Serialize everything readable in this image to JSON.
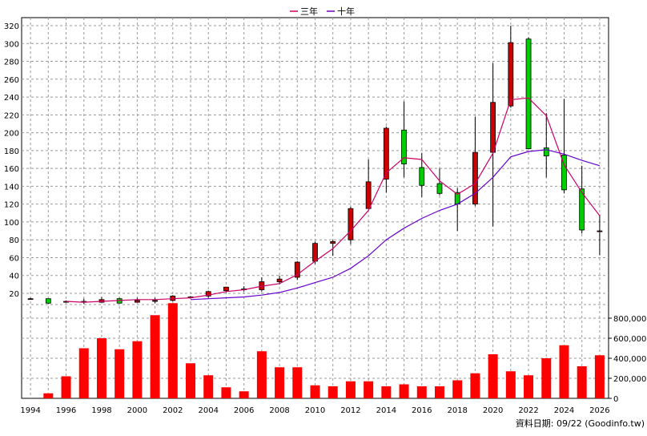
{
  "chart_data": {
    "type": "candlestick+bar",
    "legend": {
      "placement": "top-center",
      "entries": [
        {
          "label": "三年",
          "color": "#cc0066"
        },
        {
          "label": "十年",
          "color": "#6600cc"
        }
      ]
    },
    "price_axis": {
      "range": [
        0,
        320
      ],
      "ticks": [
        "20",
        "40",
        "60",
        "80",
        "100",
        "120",
        "140",
        "160",
        "180",
        "200",
        "220",
        "240",
        "260",
        "280",
        "300",
        "320"
      ],
      "side": "left"
    },
    "volume_axis": {
      "range": [
        0,
        900000
      ],
      "ticks": [
        "0",
        "200,000",
        "400,000",
        "600,000",
        "800,000"
      ],
      "side": "right"
    },
    "x_ticks": [
      "1994",
      "1996",
      "1998",
      "2000",
      "2002",
      "2004",
      "2006",
      "2008",
      "2010",
      "2012",
      "2014",
      "2016",
      "2018",
      "2020",
      "2022",
      "2024",
      "2026"
    ],
    "grid": true,
    "colors": {
      "up": "#cc0000",
      "down": "#00cc00",
      "volume": "#ff0000",
      "ma3": "#cc0066",
      "ma10": "#6600cc"
    },
    "candles": [
      {
        "year": 1994,
        "open": 14,
        "close": 14,
        "high": 15,
        "low": 13
      },
      {
        "year": 1995,
        "open": 14,
        "close": 9,
        "high": 14,
        "low": 8
      },
      {
        "year": 1996,
        "open": 10,
        "close": 11,
        "high": 12,
        "low": 10
      },
      {
        "year": 1997,
        "open": 10,
        "close": 11,
        "high": 14,
        "low": 8
      },
      {
        "year": 1998,
        "open": 10,
        "close": 13,
        "high": 16,
        "low": 10
      },
      {
        "year": 1999,
        "open": 14,
        "close": 9,
        "high": 15,
        "low": 9
      },
      {
        "year": 2000,
        "open": 10,
        "close": 12,
        "high": 15,
        "low": 10
      },
      {
        "year": 2001,
        "open": 11,
        "close": 12,
        "high": 15,
        "low": 9
      },
      {
        "year": 2002,
        "open": 12,
        "close": 17,
        "high": 18,
        "low": 11
      },
      {
        "year": 2003,
        "open": 15,
        "close": 16,
        "high": 17,
        "low": 14
      },
      {
        "year": 2004,
        "open": 17,
        "close": 22,
        "high": 23,
        "low": 15
      },
      {
        "year": 2005,
        "open": 23,
        "close": 27,
        "high": 27,
        "low": 21
      },
      {
        "year": 2006,
        "open": 25,
        "close": 24,
        "high": 28,
        "low": 22
      },
      {
        "year": 2007,
        "open": 24,
        "close": 33,
        "high": 38,
        "low": 22
      },
      {
        "year": 2008,
        "open": 33,
        "close": 36,
        "high": 40,
        "low": 30
      },
      {
        "year": 2009,
        "open": 38,
        "close": 55,
        "high": 56,
        "low": 35
      },
      {
        "year": 2010,
        "open": 56,
        "close": 76,
        "high": 78,
        "low": 53
      },
      {
        "year": 2011,
        "open": 76,
        "close": 78,
        "high": 80,
        "low": 62
      },
      {
        "year": 2012,
        "open": 80,
        "close": 115,
        "high": 117,
        "low": 75
      },
      {
        "year": 2013,
        "open": 115,
        "close": 145,
        "high": 170,
        "low": 115
      },
      {
        "year": 2014,
        "open": 148,
        "close": 205,
        "high": 207,
        "low": 133
      },
      {
        "year": 2015,
        "open": 203,
        "close": 165,
        "high": 235,
        "low": 150
      },
      {
        "year": 2016,
        "open": 161,
        "close": 141,
        "high": 177,
        "low": 128
      },
      {
        "year": 2017,
        "open": 143,
        "close": 132,
        "high": 160,
        "low": 130
      },
      {
        "year": 2018,
        "open": 133,
        "close": 120,
        "high": 138,
        "low": 90
      },
      {
        "year": 2019,
        "open": 120,
        "close": 178,
        "high": 218,
        "low": 118
      },
      {
        "year": 2020,
        "open": 178,
        "close": 234,
        "high": 278,
        "low": 95
      },
      {
        "year": 2021,
        "open": 230,
        "close": 301,
        "high": 320,
        "low": 228
      },
      {
        "year": 2022,
        "open": 305,
        "close": 182,
        "high": 307,
        "low": 182
      },
      {
        "year": 2023,
        "open": 183,
        "close": 174,
        "high": 222,
        "low": 150
      },
      {
        "year": 2024,
        "open": 175,
        "close": 136,
        "high": 238,
        "low": 132
      },
      {
        "year": 2025,
        "open": 137,
        "close": 91,
        "high": 163,
        "low": 87
      },
      {
        "year": 2026,
        "open": 90,
        "close": 90,
        "high": 108,
        "low": 63
      }
    ],
    "volume": [
      {
        "year": 1995,
        "value": 50000
      },
      {
        "year": 1996,
        "value": 220000
      },
      {
        "year": 1997,
        "value": 500000
      },
      {
        "year": 1998,
        "value": 600000
      },
      {
        "year": 1999,
        "value": 490000
      },
      {
        "year": 2000,
        "value": 570000
      },
      {
        "year": 2001,
        "value": 830000
      },
      {
        "year": 2002,
        "value": 950000
      },
      {
        "year": 2003,
        "value": 350000
      },
      {
        "year": 2004,
        "value": 230000
      },
      {
        "year": 2005,
        "value": 110000
      },
      {
        "year": 2006,
        "value": 70000
      },
      {
        "year": 2007,
        "value": 470000
      },
      {
        "year": 2008,
        "value": 310000
      },
      {
        "year": 2009,
        "value": 310000
      },
      {
        "year": 2010,
        "value": 130000
      },
      {
        "year": 2011,
        "value": 120000
      },
      {
        "year": 2012,
        "value": 170000
      },
      {
        "year": 2013,
        "value": 170000
      },
      {
        "year": 2014,
        "value": 120000
      },
      {
        "year": 2015,
        "value": 140000
      },
      {
        "year": 2016,
        "value": 120000
      },
      {
        "year": 2017,
        "value": 120000
      },
      {
        "year": 2018,
        "value": 180000
      },
      {
        "year": 2019,
        "value": 250000
      },
      {
        "year": 2020,
        "value": 440000
      },
      {
        "year": 2021,
        "value": 270000
      },
      {
        "year": 2022,
        "value": 230000
      },
      {
        "year": 2023,
        "value": 400000
      },
      {
        "year": 2024,
        "value": 530000
      },
      {
        "year": 2025,
        "value": 320000
      },
      {
        "year": 2026,
        "value": 430000
      }
    ],
    "ma3": [
      {
        "year": 1996,
        "value": 11
      },
      {
        "year": 1997,
        "value": 10
      },
      {
        "year": 1998,
        "value": 11
      },
      {
        "year": 1999,
        "value": 12
      },
      {
        "year": 2000,
        "value": 13
      },
      {
        "year": 2001,
        "value": 13
      },
      {
        "year": 2002,
        "value": 14
      },
      {
        "year": 2003,
        "value": 15
      },
      {
        "year": 2004,
        "value": 18
      },
      {
        "year": 2005,
        "value": 22
      },
      {
        "year": 2006,
        "value": 24
      },
      {
        "year": 2007,
        "value": 28
      },
      {
        "year": 2008,
        "value": 31
      },
      {
        "year": 2009,
        "value": 41
      },
      {
        "year": 2010,
        "value": 56
      },
      {
        "year": 2011,
        "value": 70
      },
      {
        "year": 2012,
        "value": 90
      },
      {
        "year": 2013,
        "value": 113
      },
      {
        "year": 2014,
        "value": 155
      },
      {
        "year": 2015,
        "value": 172
      },
      {
        "year": 2016,
        "value": 170
      },
      {
        "year": 2017,
        "value": 146
      },
      {
        "year": 2018,
        "value": 131
      },
      {
        "year": 2019,
        "value": 143
      },
      {
        "year": 2020,
        "value": 177
      },
      {
        "year": 2021,
        "value": 237
      },
      {
        "year": 2022,
        "value": 239
      },
      {
        "year": 2023,
        "value": 219
      },
      {
        "year": 2024,
        "value": 164
      },
      {
        "year": 2025,
        "value": 133
      },
      {
        "year": 2026,
        "value": 107
      }
    ],
    "ma10": [
      {
        "year": 2003,
        "value": 13
      },
      {
        "year": 2004,
        "value": 14
      },
      {
        "year": 2005,
        "value": 15
      },
      {
        "year": 2006,
        "value": 16
      },
      {
        "year": 2007,
        "value": 18
      },
      {
        "year": 2008,
        "value": 21
      },
      {
        "year": 2009,
        "value": 26
      },
      {
        "year": 2010,
        "value": 32
      },
      {
        "year": 2011,
        "value": 38
      },
      {
        "year": 2012,
        "value": 48
      },
      {
        "year": 2013,
        "value": 62
      },
      {
        "year": 2014,
        "value": 80
      },
      {
        "year": 2015,
        "value": 93
      },
      {
        "year": 2016,
        "value": 104
      },
      {
        "year": 2017,
        "value": 113
      },
      {
        "year": 2018,
        "value": 120
      },
      {
        "year": 2019,
        "value": 132
      },
      {
        "year": 2020,
        "value": 150
      },
      {
        "year": 2021,
        "value": 173
      },
      {
        "year": 2022,
        "value": 179
      },
      {
        "year": 2023,
        "value": 181
      },
      {
        "year": 2024,
        "value": 176
      },
      {
        "year": 2025,
        "value": 169
      },
      {
        "year": 2026,
        "value": 163
      }
    ]
  },
  "credit": "資料日期: 09/22  (Goodinfo.tw)"
}
